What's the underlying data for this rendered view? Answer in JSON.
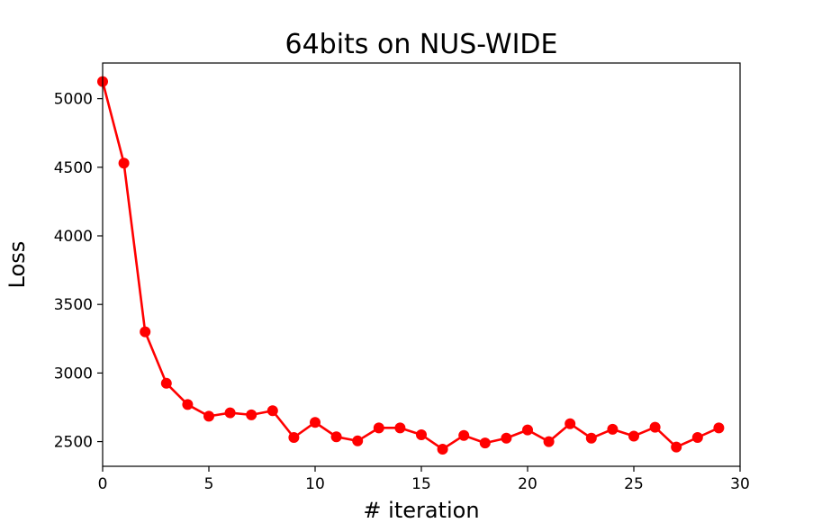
{
  "chart_data": {
    "type": "line",
    "title": "64bits on NUS-WIDE",
    "xlabel": "# iteration",
    "ylabel": "Loss",
    "xlim": [
      0,
      30
    ],
    "ylim": [
      2320,
      5260
    ],
    "xticks": [
      0,
      5,
      10,
      15,
      20,
      25,
      30
    ],
    "yticks": [
      2500,
      3000,
      3500,
      4000,
      4500,
      5000
    ],
    "grid": false,
    "legend": "none",
    "series": [
      {
        "color": "#ff0000",
        "marker": "circle",
        "x": [
          0,
          1,
          2,
          3,
          4,
          5,
          6,
          7,
          8,
          9,
          10,
          11,
          12,
          13,
          14,
          15,
          16,
          17,
          18,
          19,
          20,
          21,
          22,
          23,
          24,
          25,
          26,
          27,
          28,
          29
        ],
        "y": [
          5125,
          4530,
          3300,
          2925,
          2770,
          2685,
          2710,
          2695,
          2725,
          2530,
          2640,
          2535,
          2505,
          2600,
          2600,
          2550,
          2445,
          2545,
          2490,
          2525,
          2585,
          2500,
          2630,
          2525,
          2590,
          2540,
          2605,
          2460,
          2530,
          2600
        ]
      }
    ]
  }
}
